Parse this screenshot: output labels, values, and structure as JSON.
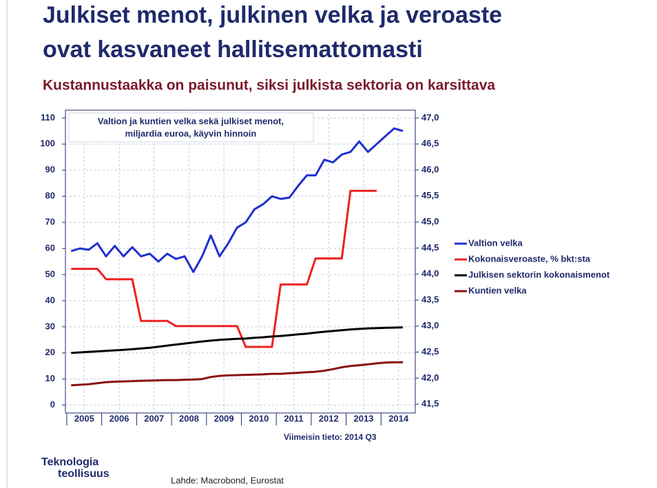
{
  "chart_data": {
    "type": "line",
    "title": "Julkiset menot, julkinen velka ja veroaste",
    "title_line2": "ovat kasvaneet hallitsemattomasti",
    "subtitle": "Kustannustaakka on paisunut, siksi julkista sektoria on karsittava",
    "chart_title": "Valtion ja kuntien velka sekä julkiset menot,",
    "chart_title_line2": "miljardia euroa, käyvin hinnoin",
    "note": "Viimeisin tieto: 2014 Q3",
    "logo_line1": "Teknologia",
    "logo_line2": "teollisuus",
    "source": "Lahde: Macrobond, Eurostat",
    "x": [
      2005.125,
      2005.375,
      2005.625,
      2005.875,
      2006.125,
      2006.375,
      2006.625,
      2006.875,
      2007.125,
      2007.375,
      2007.625,
      2007.875,
      2008.125,
      2008.375,
      2008.625,
      2008.875,
      2009.125,
      2009.375,
      2009.625,
      2009.875,
      2010.125,
      2010.375,
      2010.625,
      2010.875,
      2011.125,
      2011.375,
      2011.625,
      2011.875,
      2012.125,
      2012.375,
      2012.625,
      2012.875,
      2013.125,
      2013.375,
      2013.625,
      2013.875,
      2014.125,
      2014.375,
      2014.625
    ],
    "xlim": [
      2005,
      2015
    ],
    "xticks": [
      {
        "value": 2005.5,
        "label": "2005"
      },
      {
        "value": 2006.5,
        "label": "2006"
      },
      {
        "value": 2007.5,
        "label": "2007"
      },
      {
        "value": 2008.5,
        "label": "2008"
      },
      {
        "value": 2009.5,
        "label": "2009"
      },
      {
        "value": 2010.5,
        "label": "2010"
      },
      {
        "value": 2011.5,
        "label": "2011"
      },
      {
        "value": 2012.5,
        "label": "2012"
      },
      {
        "value": 2013.5,
        "label": "2013"
      },
      {
        "value": 2014.5,
        "label": "2014"
      }
    ],
    "ylim": [
      -3,
      113
    ],
    "yticks": [
      0,
      10,
      20,
      30,
      40,
      50,
      60,
      70,
      80,
      90,
      100,
      110
    ],
    "y2lim": [
      41.33,
      47.15
    ],
    "y2ticks": [
      {
        "value": 41.5,
        "label": "41,5"
      },
      {
        "value": 42.0,
        "label": "42,0"
      },
      {
        "value": 42.5,
        "label": "42,5"
      },
      {
        "value": 43.0,
        "label": "43,0"
      },
      {
        "value": 43.5,
        "label": "43,5"
      },
      {
        "value": 44.0,
        "label": "44,0"
      },
      {
        "value": 44.5,
        "label": "44,5"
      },
      {
        "value": 45.0,
        "label": "45,0"
      },
      {
        "value": 45.5,
        "label": "45,5"
      },
      {
        "value": 46.0,
        "label": "46,0"
      },
      {
        "value": 46.5,
        "label": "46,5"
      },
      {
        "value": 47.0,
        "label": "47,0"
      }
    ],
    "grid": true,
    "legend": "right",
    "series": [
      {
        "name": "Valtion velka",
        "color": "#1f2fd0",
        "axis": "y",
        "values": [
          59,
          60,
          59.5,
          62,
          57,
          61,
          57,
          60.5,
          57,
          58,
          55,
          58,
          56,
          57,
          51,
          57,
          65,
          57,
          62,
          68,
          70,
          75,
          77,
          80,
          79,
          79.5,
          84,
          88,
          88,
          94,
          93,
          96,
          97,
          101,
          97,
          100,
          103,
          106,
          105
        ]
      },
      {
        "name": "Kokonaisveroaste, % bkt:sta",
        "color": "#ee2020",
        "axis": "y2",
        "values": [
          44.1,
          44.1,
          44.1,
          44.1,
          43.9,
          43.9,
          43.9,
          43.9,
          43.1,
          43.1,
          43.1,
          43.1,
          43.0,
          43.0,
          43.0,
          43.0,
          43.0,
          43.0,
          43.0,
          43.0,
          42.6,
          42.6,
          42.6,
          42.6,
          43.8,
          43.8,
          43.8,
          43.8,
          44.3,
          44.3,
          44.3,
          44.3,
          45.6,
          45.6,
          45.6,
          45.6,
          null,
          null,
          null
        ]
      },
      {
        "name": "Julkisen sektorin kokonaismenot",
        "color": "#000000",
        "axis": "y",
        "values": [
          20,
          20.2,
          20.4,
          20.6,
          20.8,
          21,
          21.2,
          21.4,
          21.7,
          22,
          22.4,
          22.8,
          23.2,
          23.6,
          24,
          24.4,
          24.7,
          25,
          25.2,
          25.4,
          25.5,
          25.8,
          26,
          26.3,
          26.5,
          26.8,
          27.1,
          27.4,
          27.8,
          28.1,
          28.4,
          28.7,
          29,
          29.2,
          29.4,
          29.5,
          29.6,
          29.7,
          29.8
        ]
      },
      {
        "name": "Kuntien velka",
        "color": "#8b1010",
        "axis": "y",
        "values": [
          7.6,
          7.8,
          8,
          8.4,
          8.8,
          9,
          9.1,
          9.2,
          9.3,
          9.4,
          9.5,
          9.6,
          9.6,
          9.7,
          9.8,
          10,
          10.8,
          11.2,
          11.4,
          11.5,
          11.6,
          11.7,
          11.8,
          12,
          12,
          12.2,
          12.4,
          12.6,
          12.8,
          13.2,
          13.8,
          14.5,
          15,
          15.3,
          15.6,
          16,
          16.3,
          16.4,
          16.4
        ]
      }
    ]
  }
}
